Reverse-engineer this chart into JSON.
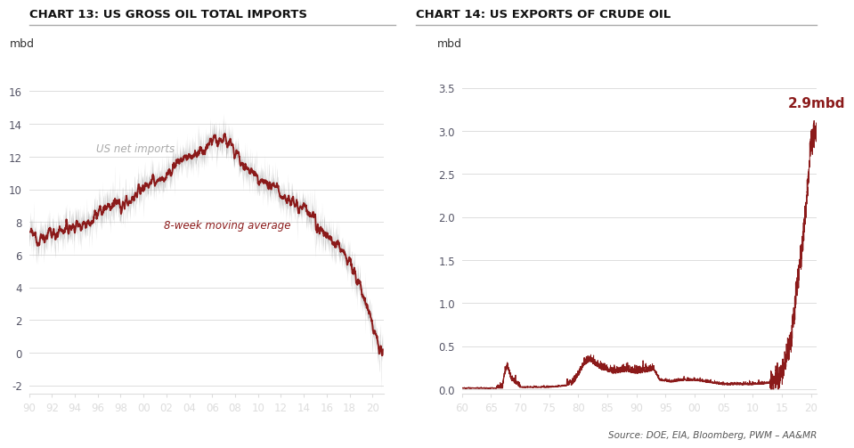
{
  "chart1_title": "CHART 13: US GROSS OIL TOTAL IMPORTS",
  "chart2_title": "CHART 14: US EXPORTS OF CRUDE OIL",
  "chart1_ylabel": "mbd",
  "chart2_ylabel": "mbd",
  "chart1_xlabel_ticks": [
    "90",
    "92",
    "94",
    "96",
    "98",
    "00",
    "02",
    "04",
    "06",
    "08",
    "10",
    "12",
    "14",
    "16",
    "18",
    "20"
  ],
  "chart2_xlabel_ticks": [
    "60",
    "65",
    "70",
    "75",
    "80",
    "85",
    "90",
    "95",
    "00",
    "05",
    "10",
    "15",
    "20"
  ],
  "chart1_ylim": [
    -2.5,
    17.0
  ],
  "chart2_ylim": [
    -0.05,
    3.65
  ],
  "chart1_yticks": [
    -2,
    0,
    2,
    4,
    6,
    8,
    10,
    12,
    14,
    16
  ],
  "chart2_yticks": [
    0.0,
    0.5,
    1.0,
    1.5,
    2.0,
    2.5,
    3.0,
    3.5
  ],
  "dark_red": "#8B1A1A",
  "gray_color": "#AAAAAA",
  "text_color": "#333333",
  "tick_label_color": "#555566",
  "label_net_imports": "US net imports",
  "label_moving_avg": "8-week moving average",
  "annotation_exports": "2.9mbd",
  "source_text": "Source: DOE, EIA, Bloomberg, PWM – AA&MR",
  "background_color": "#FFFFFF",
  "title_line_color": "#AAAAAA",
  "grid_color": "#DDDDDD"
}
